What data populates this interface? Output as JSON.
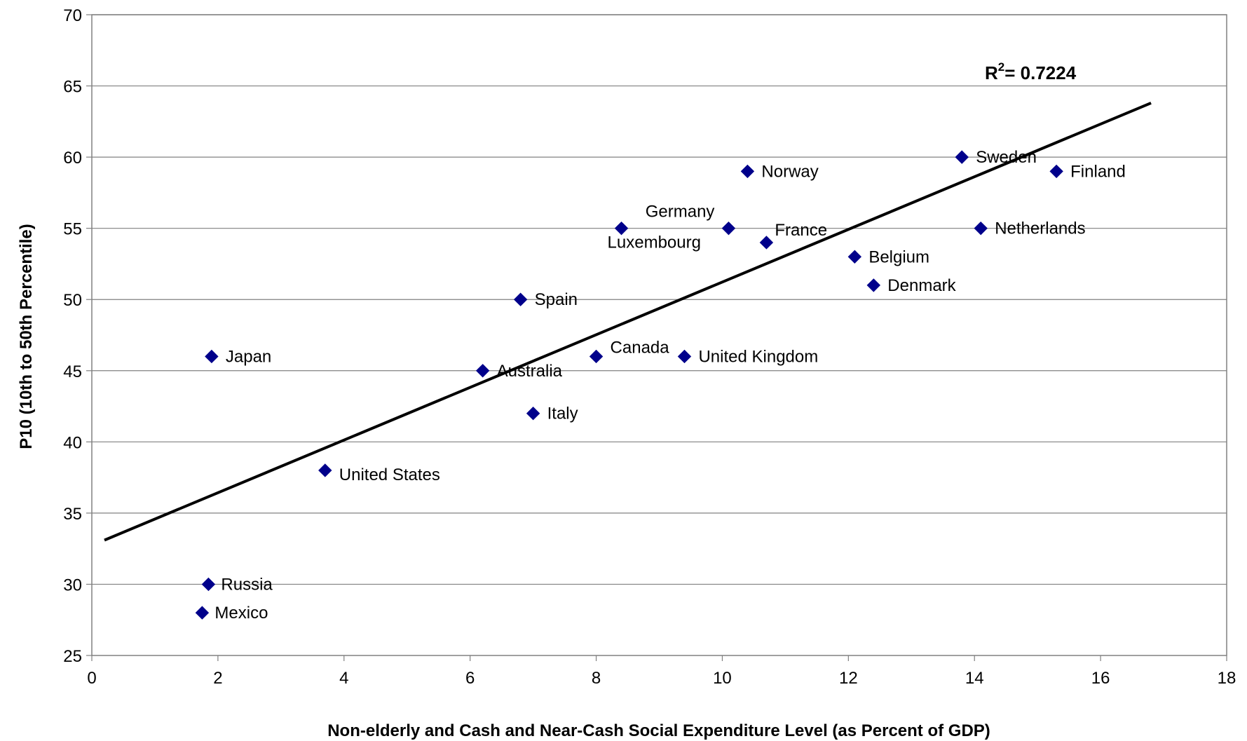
{
  "chart_data": {
    "type": "scatter",
    "xlabel": "Non-elderly and Cash and Near-Cash Social Expenditure Level (as Percent of GDP)",
    "ylabel": "P10 (10th to 50th Percentile)",
    "xlim": [
      0,
      18
    ],
    "ylim": [
      25,
      70
    ],
    "xticks": [
      0,
      2,
      4,
      6,
      8,
      10,
      12,
      14,
      16,
      18
    ],
    "yticks": [
      25,
      30,
      35,
      40,
      45,
      50,
      55,
      60,
      65,
      70
    ],
    "grid": "horizontal",
    "marker_color": "#00008B",
    "points": [
      {
        "label": "Japan",
        "x": 1.9,
        "y": 46
      },
      {
        "label": "Russia",
        "x": 1.85,
        "y": 30
      },
      {
        "label": "Mexico",
        "x": 1.75,
        "y": 28
      },
      {
        "label": "United States",
        "x": 3.7,
        "y": 38
      },
      {
        "label": "Australia",
        "x": 6.2,
        "y": 45
      },
      {
        "label": "Spain",
        "x": 6.8,
        "y": 50
      },
      {
        "label": "Italy",
        "x": 7.0,
        "y": 42
      },
      {
        "label": "Canada",
        "x": 8.0,
        "y": 46
      },
      {
        "label": "Luxembourg",
        "x": 8.4,
        "y": 55
      },
      {
        "label": "United Kingdom",
        "x": 9.4,
        "y": 46
      },
      {
        "label": "Germany",
        "x": 10.1,
        "y": 55
      },
      {
        "label": "Norway",
        "x": 10.4,
        "y": 59
      },
      {
        "label": "France",
        "x": 10.7,
        "y": 54
      },
      {
        "label": "Belgium",
        "x": 12.1,
        "y": 53
      },
      {
        "label": "Denmark",
        "x": 12.4,
        "y": 51
      },
      {
        "label": "Sweden",
        "x": 13.8,
        "y": 60
      },
      {
        "label": "Netherlands",
        "x": 14.1,
        "y": 55
      },
      {
        "label": "Finland",
        "x": 15.3,
        "y": 59
      }
    ],
    "trendline": {
      "type": "linear",
      "start": {
        "x": 0.2,
        "y": 33.1
      },
      "end": {
        "x": 16.8,
        "y": 63.8
      },
      "r_squared_label": "= 0.7224"
    }
  }
}
